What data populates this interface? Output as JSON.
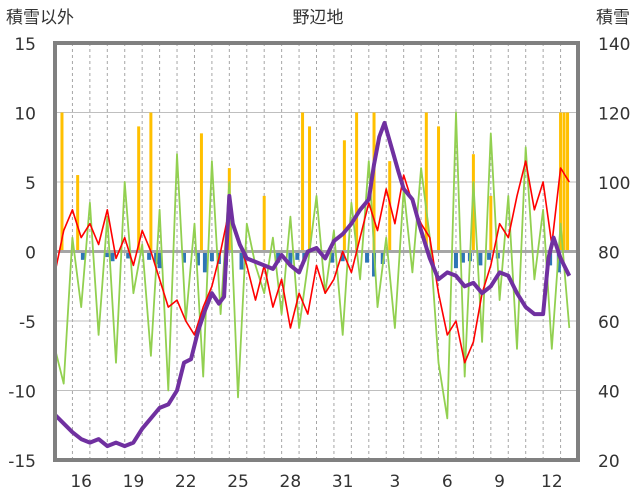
{
  "chart_data": {
    "type": "line",
    "title": "野辺地",
    "ylabel_left": "積雪以外",
    "ylabel_right": "積雪",
    "ylim_left": [
      -15,
      15
    ],
    "ylim_right": [
      20,
      140
    ],
    "yticks_left": [
      "15",
      "10",
      "5",
      "0",
      "-5",
      "-10",
      "-15"
    ],
    "yticks_right": [
      "140",
      "120",
      "100",
      "80",
      "60",
      "40",
      "20"
    ],
    "x_tick_labels": [
      "16",
      "19",
      "22",
      "25",
      "28",
      "31",
      "3",
      "6",
      "9",
      "12"
    ],
    "x_tick_positions": [
      1.5,
      4.5,
      7.5,
      10.5,
      13.5,
      16.5,
      19.5,
      22.5,
      25.5,
      28.5
    ],
    "x_range": [
      0,
      30
    ],
    "grid": true,
    "colors": {
      "temperature": "#ff0000",
      "sunshine": "#ffc000",
      "precip": "#2e75b6",
      "wind": "#92d050",
      "snow_depth": "#7030a0",
      "frame": "#808080",
      "grid": "#a6a6a6"
    },
    "series": [
      {
        "key": "temperature",
        "axis": "left",
        "x": [
          0,
          0.5,
          1,
          1.5,
          2,
          2.5,
          3,
          3.5,
          4,
          4.5,
          5,
          5.5,
          6,
          6.5,
          7,
          7.5,
          8,
          8.5,
          9,
          9.5,
          10,
          10.5,
          11,
          11.5,
          12,
          12.5,
          13,
          13.5,
          14,
          14.5,
          15,
          15.5,
          16,
          16.5,
          17,
          17.5,
          18,
          18.5,
          19,
          19.5,
          20,
          20.5,
          21,
          21.5,
          22,
          22.5,
          23,
          23.5,
          24,
          24.5,
          25,
          25.5,
          26,
          26.5,
          27,
          27.5,
          28,
          28.5,
          29,
          29.5
        ],
        "values": [
          -1.5,
          1.5,
          3.0,
          1.0,
          2.0,
          0.5,
          3.0,
          -0.5,
          1.0,
          -1.0,
          1.5,
          0.0,
          -2.0,
          -4.0,
          -3.5,
          -5.0,
          -6.0,
          -4.0,
          -2.5,
          0.0,
          3.0,
          1.0,
          -1.0,
          -3.5,
          -1.0,
          -4.0,
          -2.0,
          -5.5,
          -3.0,
          -4.5,
          -1.0,
          -3.0,
          -2.0,
          0.0,
          -1.5,
          1.0,
          3.5,
          1.5,
          4.5,
          2.0,
          5.5,
          3.5,
          2.0,
          1.0,
          -3.0,
          -6.0,
          -5.0,
          -8.0,
          -6.5,
          -3.0,
          -1.0,
          2.0,
          1.0,
          4.0,
          6.5,
          3.0,
          5.0,
          0.5,
          6.0,
          5.0
        ]
      },
      {
        "key": "wind",
        "axis": "left",
        "x": [
          0,
          0.5,
          1,
          1.5,
          2,
          2.5,
          3,
          3.5,
          4,
          4.5,
          5,
          5.5,
          6,
          6.5,
          7,
          7.5,
          8,
          8.5,
          9,
          9.5,
          10,
          10.5,
          11,
          11.5,
          12,
          12.5,
          13,
          13.5,
          14,
          14.5,
          15,
          15.5,
          16,
          16.5,
          17,
          17.5,
          18,
          18.5,
          19,
          19.5,
          20,
          20.5,
          21,
          21.5,
          22,
          22.5,
          23,
          23.5,
          24,
          24.5,
          25,
          25.5,
          26,
          26.5,
          27,
          27.5,
          28,
          28.5,
          29,
          29.5
        ],
        "values": [
          -7.0,
          -9.5,
          1.0,
          -4.0,
          3.5,
          -6.0,
          2.5,
          -8.0,
          5.0,
          -3.0,
          0.5,
          -7.5,
          3.0,
          -10.0,
          7.0,
          -5.0,
          2.0,
          -9.0,
          6.5,
          -4.5,
          5.0,
          -10.5,
          2.0,
          -1.0,
          -3.0,
          1.0,
          -4.5,
          2.5,
          -5.5,
          -1.0,
          4.0,
          -3.0,
          1.5,
          -6.0,
          3.5,
          -2.0,
          6.5,
          -4.0,
          1.0,
          -5.5,
          4.5,
          -1.5,
          6.0,
          1.0,
          -8.0,
          -12.0,
          10.0,
          -9.0,
          5.0,
          -6.5,
          8.5,
          -3.5,
          4.0,
          -7.0,
          7.5,
          -2.0,
          3.0,
          -7.0,
          2.0,
          -5.5
        ]
      },
      {
        "key": "snow_depth",
        "axis": "right",
        "x": [
          0,
          0.4,
          1.0,
          1.5,
          2.0,
          2.5,
          3.0,
          3.5,
          4.0,
          4.5,
          5.0,
          5.5,
          6.0,
          6.5,
          7.0,
          7.4,
          7.8,
          8.2,
          8.6,
          9.0,
          9.4,
          9.7,
          10.0,
          10.2,
          10.6,
          11.0,
          11.5,
          12.0,
          12.5,
          13.0,
          13.5,
          14.0,
          14.5,
          15.0,
          15.5,
          16.0,
          16.5,
          17.0,
          17.5,
          18.0,
          18.3,
          18.6,
          18.9,
          19.3,
          19.7,
          20.0,
          20.5,
          21.0,
          21.5,
          22.0,
          22.5,
          23.0,
          23.5,
          24.0,
          24.5,
          25.0,
          25.5,
          26.0,
          26.5,
          27.0,
          27.5,
          28.0,
          28.3,
          28.6,
          29.0,
          29.5
        ],
        "values": [
          33,
          31,
          28,
          26,
          25,
          26,
          24,
          25,
          24,
          25,
          29,
          32,
          35,
          36,
          40,
          48,
          49,
          57,
          63,
          68,
          65,
          67,
          96,
          88,
          82,
          78,
          77,
          76,
          75,
          79,
          76,
          74,
          80,
          81,
          78,
          83,
          85,
          88,
          92,
          95,
          105,
          113,
          117,
          110,
          103,
          98,
          95,
          86,
          78,
          72,
          74,
          73,
          70,
          71,
          68,
          70,
          74,
          73,
          68,
          64,
          62,
          62,
          78,
          84,
          78,
          73
        ]
      }
    ],
    "bar_series": [
      {
        "key": "sunshine",
        "axis": "left",
        "x": [
          0.4,
          1.3,
          4.8,
          5.5,
          8.4,
          10.0,
          12.0,
          14.2,
          14.6,
          16.6,
          17.3,
          18.3,
          19.2,
          21.3,
          22.0,
          24.0,
          25.0,
          29.0,
          29.2,
          29.4
        ],
        "values": [
          10.0,
          5.5,
          9.0,
          10.0,
          8.5,
          6.0,
          4.0,
          10.0,
          9.0,
          8.0,
          10.0,
          10.0,
          6.5,
          10.0,
          9.0,
          7.0,
          4.0,
          10.0,
          10.0,
          10.0
        ]
      },
      {
        "key": "precip",
        "axis": "left",
        "x": [
          1.6,
          3.0,
          3.3,
          4.2,
          5.4,
          5.8,
          6.0,
          7.4,
          8.2,
          8.6,
          9.0,
          9.4,
          9.8,
          10.7,
          12.8,
          13.5,
          13.9,
          14.3,
          15.9,
          16.5,
          17.9,
          18.3,
          18.8,
          23.0,
          23.4,
          23.8,
          24.4,
          24.9,
          25.4,
          28.4,
          28.9
        ],
        "values": [
          -0.6,
          -0.4,
          -0.7,
          -0.5,
          -0.6,
          -0.9,
          -1.2,
          -0.8,
          -1.0,
          -1.5,
          -0.7,
          -0.9,
          -1.0,
          -1.3,
          -0.8,
          -0.9,
          -0.6,
          -0.7,
          -0.8,
          -0.7,
          -0.8,
          -1.8,
          -0.9,
          -1.2,
          -0.8,
          -0.7,
          -1.0,
          -0.6,
          -0.5,
          -1.0,
          -1.5
        ]
      }
    ]
  }
}
